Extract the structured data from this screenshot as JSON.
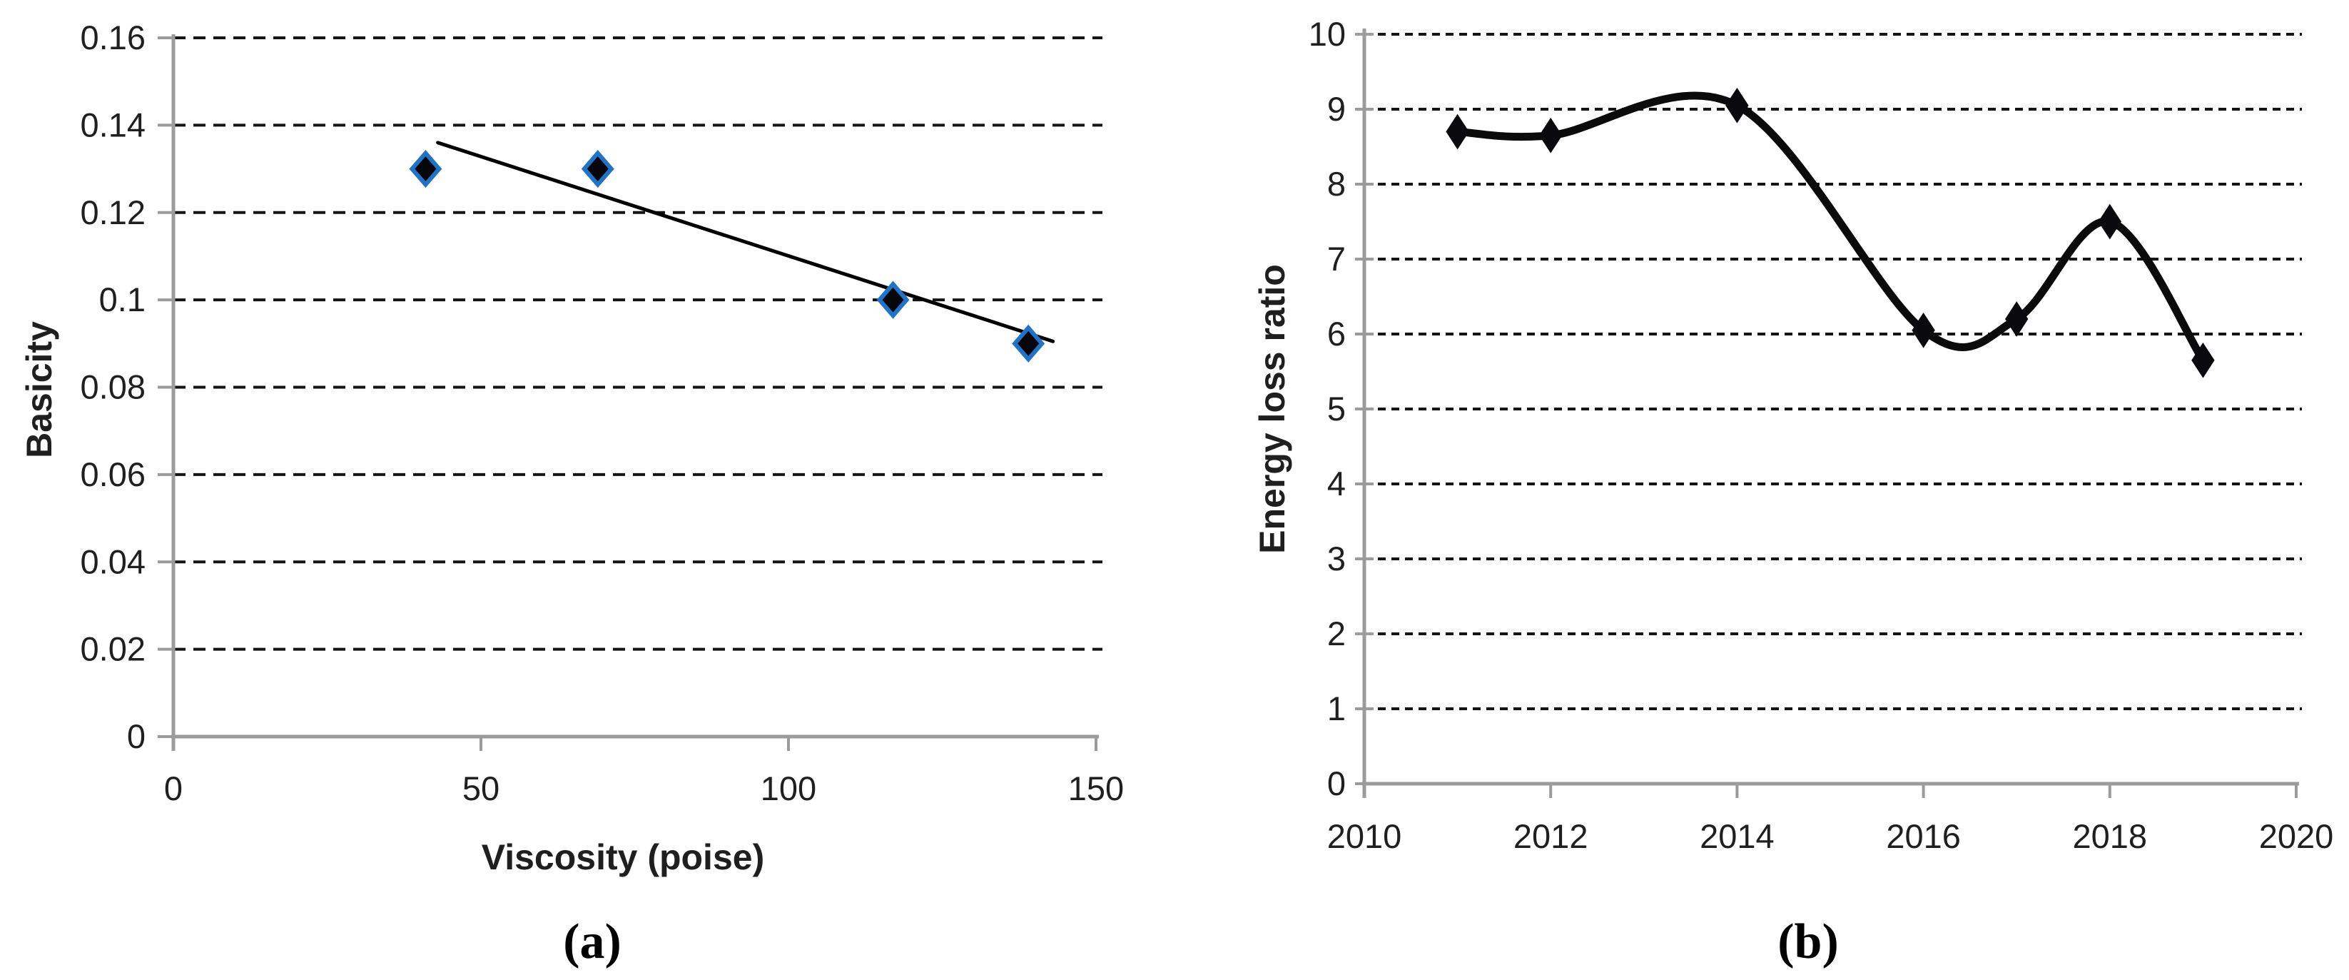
{
  "figure": {
    "captions": {
      "a": "(a)",
      "b": "(b)"
    }
  },
  "chart_data": [
    {
      "id": "a",
      "type": "scatter",
      "title": "",
      "xlabel": "Viscosity (poise)",
      "ylabel": "Basicity",
      "xlim": [
        0,
        150
      ],
      "ylim": [
        0,
        0.16
      ],
      "x_ticks": [
        0,
        50,
        100,
        150
      ],
      "x_tick_labels": [
        "0",
        "50",
        "100",
        "150"
      ],
      "y_ticks": [
        0,
        0.02,
        0.04,
        0.06,
        0.08,
        0.1,
        0.12,
        0.14,
        0.16
      ],
      "y_tick_labels": [
        "0",
        "0.02",
        "0.04",
        "0.06",
        "0.08",
        "0.1",
        "0.12",
        "0.14",
        "0.16"
      ],
      "points": [
        {
          "x": 41,
          "y": 0.13
        },
        {
          "x": 69,
          "y": 0.13
        },
        {
          "x": 117,
          "y": 0.1
        },
        {
          "x": 139,
          "y": 0.09
        }
      ],
      "trendline": {
        "x1": 43,
        "y1": 0.136,
        "x2": 143,
        "y2": 0.0905
      },
      "grid": "dashed-horizontal",
      "legend": "none",
      "marker_shape": "diamond",
      "colors": {
        "marker_fill": "#06060b",
        "marker_stroke": "#1f74c8",
        "trendline": "#000000",
        "gridline": "#141414",
        "axis": "#9b9b9b",
        "text": "#1f1f1f"
      }
    },
    {
      "id": "b",
      "type": "line",
      "title": "",
      "xlabel": "",
      "ylabel": "Energy loss ratio",
      "xlim": [
        2010,
        2020
      ],
      "ylim": [
        0,
        10
      ],
      "x_ticks": [
        2010,
        2012,
        2014,
        2016,
        2018,
        2020
      ],
      "x_tick_labels": [
        "2010",
        "2012",
        "2014",
        "2016",
        "2018",
        "2020"
      ],
      "y_ticks": [
        0,
        1,
        2,
        3,
        4,
        5,
        6,
        7,
        8,
        9,
        10
      ],
      "y_tick_labels": [
        "0",
        "1",
        "2",
        "3",
        "4",
        "5",
        "6",
        "7",
        "8",
        "9",
        "10"
      ],
      "x": [
        2011,
        2012,
        2014,
        2016,
        2017,
        2018,
        2019
      ],
      "y": [
        8.7,
        8.65,
        9.05,
        6.05,
        6.2,
        7.5,
        5.65
      ],
      "smooth": true,
      "grid": "dashed-horizontal",
      "legend": "none",
      "marker_shape": "diamond",
      "colors": {
        "line": "#0b0b0b",
        "marker_fill": "#0a0a0e",
        "marker_stroke": "#0a0a0e",
        "gridline": "#141414",
        "axis": "#9b9b9b",
        "text": "#1f1f1f"
      }
    }
  ]
}
